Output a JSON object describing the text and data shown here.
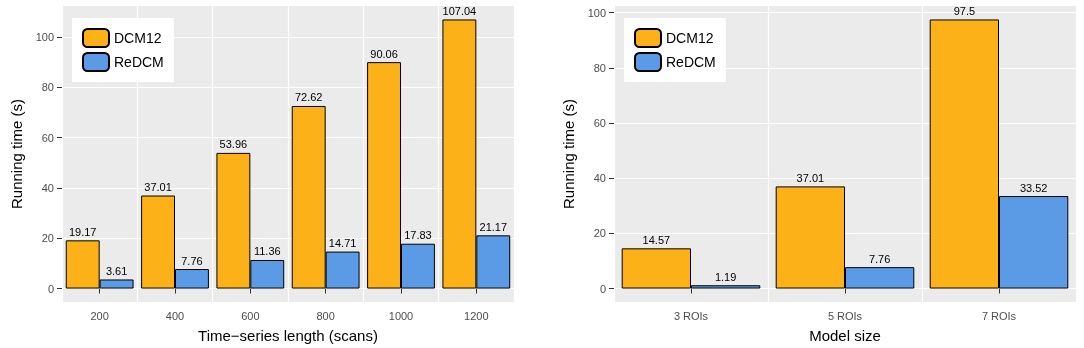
{
  "chart_data": [
    {
      "type": "bar",
      "xlabel": "Time−series length (scans)",
      "ylabel": "Running time (s)",
      "categories": [
        "200",
        "400",
        "600",
        "800",
        "1000",
        "1200"
      ],
      "series": [
        {
          "name": "DCM12",
          "color": "#fbb117",
          "values": [
            19.17,
            37.01,
            53.96,
            72.62,
            90.06,
            107.04
          ]
        },
        {
          "name": "ReDCM",
          "color": "#5b9be6",
          "values": [
            3.61,
            7.76,
            11.36,
            14.71,
            17.83,
            21.17
          ]
        }
      ],
      "ylim": [
        -5.35,
        112.39
      ],
      "yticks": [
        0,
        20,
        40,
        60,
        80,
        100
      ],
      "grid": true,
      "legend": "top left",
      "data_labels": true
    },
    {
      "type": "bar",
      "xlabel": "Model size",
      "ylabel": "Running time (s)",
      "categories": [
        "3 ROIs",
        "5 ROIs",
        "7 ROIs"
      ],
      "series": [
        {
          "name": "DCM12",
          "color": "#fbb117",
          "values": [
            14.57,
            37.01,
            97.5
          ]
        },
        {
          "name": "ReDCM",
          "color": "#5b9be6",
          "values": [
            1.19,
            7.76,
            33.52
          ]
        }
      ],
      "ylim": [
        -4.875,
        102.375
      ],
      "yticks": [
        0,
        20,
        40,
        60,
        80,
        100
      ],
      "grid": true,
      "legend": "top left",
      "data_labels": true
    }
  ]
}
